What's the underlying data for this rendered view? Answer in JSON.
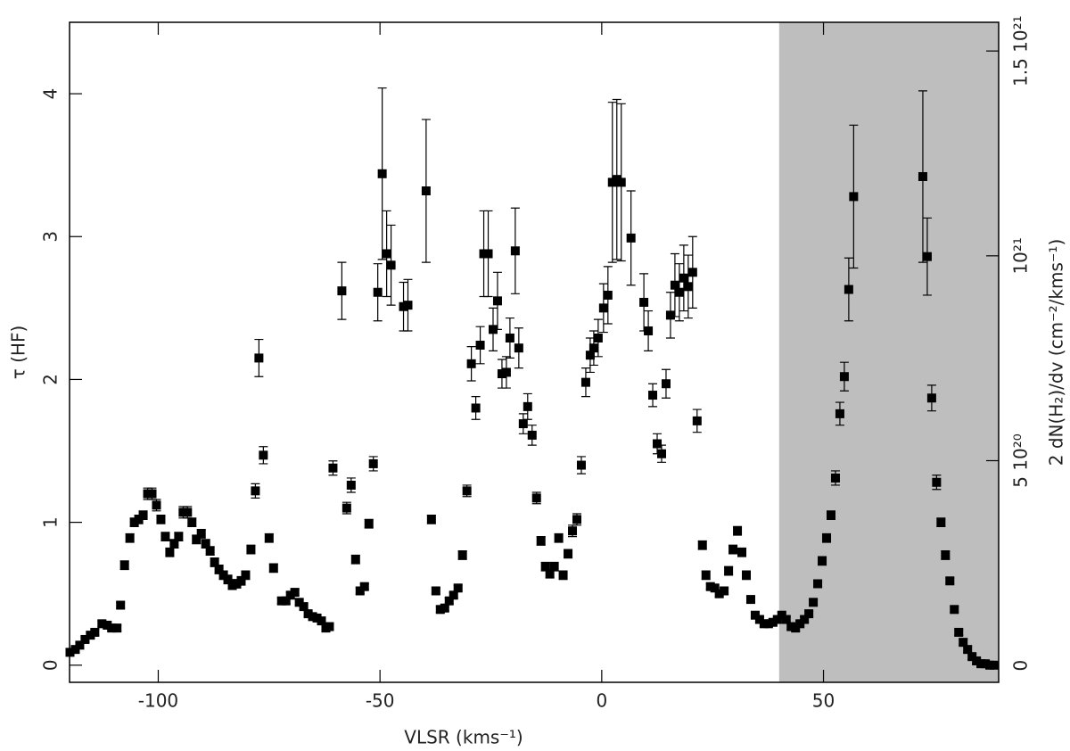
{
  "chart_data": {
    "type": "scatter",
    "xlabel": "VLSR (kms⁻¹)",
    "ylabel": "τ (HF)",
    "y2label": "2 dN(H₂)/dv (cm⁻²/kms⁻¹)",
    "xlim": [
      -120,
      89.5
    ],
    "ylim": [
      -0.12,
      4.5
    ],
    "y2lim": [
      -4.1e+19,
      1.57e+21
    ],
    "xticks": [
      -100,
      -50,
      0,
      50
    ],
    "yticks": [
      0,
      1,
      2,
      3,
      4
    ],
    "y2ticks": [
      0,
      {
        "value": 5e+20,
        "label": "5 10²⁰"
      },
      {
        "value": 1e+21,
        "label": "10²¹"
      },
      {
        "value": 1.5e+21,
        "label": "1.5 10²¹"
      }
    ],
    "shaded_xrange": [
      40,
      89.5
    ],
    "shade_color": "#bebebe",
    "color": "#000000",
    "x": [
      -119.9,
      -118.7,
      -117.7,
      -116.5,
      -115.3,
      -114.3,
      -112.7,
      -111.5,
      -110.5,
      -109.3,
      -108.5,
      -107.6,
      -106.4,
      -105.4,
      -104.4,
      -103.4,
      -102.4,
      -101.4,
      -100.4,
      -99.4,
      -98.4,
      -97.4,
      -96.4,
      -95.4,
      -94.4,
      -93.4,
      -92.4,
      -91.4,
      -90.3,
      -89.3,
      -88.3,
      -87.3,
      -86.3,
      -85.3,
      -84.3,
      -83.3,
      -82.3,
      -81.3,
      -80.3,
      -79.1,
      -78.1,
      -77.3,
      -76.3,
      -75.0,
      -74.0,
      -72.2,
      -71.2,
      -70.2,
      -69.2,
      -68.2,
      -67.2,
      -66.2,
      -65.2,
      -64.2,
      -63.2,
      -62.2,
      -61.4,
      -60.6,
      -58.6,
      -57.5,
      -56.5,
      -55.5,
      -54.5,
      -53.5,
      -52.5,
      -51.5,
      -50.5,
      -49.5,
      -48.5,
      -47.5,
      -44.7,
      -43.7,
      -39.6,
      -38.4,
      -37.4,
      -36.4,
      -35.4,
      -34.4,
      -33.4,
      -32.4,
      -31.4,
      -30.4,
      -29.4,
      -28.4,
      -27.4,
      -26.6,
      -25.6,
      -24.5,
      -23.5,
      -22.5,
      -21.5,
      -20.7,
      -19.5,
      -18.7,
      -17.7,
      -16.7,
      -15.7,
      -14.7,
      -13.7,
      -12.7,
      -11.7,
      -10.7,
      -9.7,
      -8.7,
      -7.6,
      -6.6,
      -5.6,
      -4.6,
      -3.6,
      -2.6,
      -1.8,
      -0.8,
      0.4,
      1.4,
      2.4,
      3.4,
      4.4,
      6.6,
      9.5,
      10.5,
      11.5,
      12.5,
      13.5,
      14.5,
      15.5,
      16.5,
      17.5,
      18.5,
      19.5,
      20.5,
      21.5,
      22.7,
      23.5,
      24.5,
      25.5,
      26.5,
      27.6,
      28.6,
      29.6,
      30.6,
      31.6,
      32.6,
      33.6,
      34.6,
      35.6,
      36.6,
      37.6,
      38.6,
      39.6,
      40.6,
      41.6,
      42.7,
      43.7,
      44.7,
      45.7,
      46.7,
      47.7,
      48.7,
      49.7,
      50.7,
      51.7,
      52.7,
      53.7,
      54.7,
      55.7,
      56.8,
      72.4,
      73.4,
      74.4,
      75.5,
      76.5,
      77.5,
      78.5,
      79.5,
      80.5,
      81.5,
      82.5,
      83.5,
      84.5,
      85.5,
      86.5,
      87.5,
      88.5
    ],
    "values": [
      0.09,
      0.11,
      0.14,
      0.18,
      0.21,
      0.23,
      0.29,
      0.28,
      0.26,
      0.26,
      0.42,
      0.7,
      0.89,
      1.0,
      1.02,
      1.05,
      1.2,
      1.2,
      1.12,
      1.02,
      0.9,
      0.79,
      0.85,
      0.9,
      1.07,
      1.07,
      1.0,
      0.88,
      0.92,
      0.85,
      0.8,
      0.72,
      0.67,
      0.63,
      0.6,
      0.56,
      0.57,
      0.59,
      0.63,
      0.81,
      1.22,
      2.15,
      1.47,
      0.89,
      0.68,
      0.45,
      0.45,
      0.49,
      0.51,
      0.44,
      0.41,
      0.36,
      0.34,
      0.33,
      0.31,
      0.26,
      0.27,
      1.38,
      2.62,
      1.1,
      1.26,
      0.74,
      0.52,
      0.55,
      0.99,
      1.41,
      2.61,
      3.44,
      2.88,
      2.8,
      2.51,
      2.52,
      3.32,
      1.02,
      0.52,
      0.39,
      0.4,
      0.45,
      0.49,
      0.54,
      0.77,
      1.22,
      2.11,
      1.8,
      2.24,
      2.88,
      2.88,
      2.35,
      2.55,
      2.04,
      2.05,
      2.29,
      2.9,
      2.22,
      1.69,
      1.81,
      1.61,
      1.17,
      0.87,
      0.69,
      0.64,
      0.69,
      0.89,
      0.63,
      0.78,
      0.94,
      1.02,
      1.4,
      1.98,
      2.17,
      2.22,
      2.29,
      2.5,
      2.59,
      3.38,
      3.4,
      3.38,
      2.99,
      2.54,
      2.34,
      1.89,
      1.55,
      1.48,
      1.97,
      2.45,
      2.66,
      2.61,
      2.71,
      2.65,
      2.75,
      1.71,
      0.84,
      0.63,
      0.55,
      0.54,
      0.5,
      0.52,
      0.66,
      0.81,
      0.94,
      0.79,
      0.63,
      0.46,
      0.35,
      0.32,
      0.29,
      0.29,
      0.3,
      0.32,
      0.35,
      0.32,
      0.27,
      0.26,
      0.29,
      0.32,
      0.36,
      0.44,
      0.57,
      0.73,
      0.89,
      1.05,
      1.31,
      1.76,
      2.02,
      2.63,
      3.28,
      3.42,
      2.86,
      1.87,
      1.28,
      1.0,
      0.77,
      0.59,
      0.39,
      0.23,
      0.16,
      0.11,
      0.06,
      0.03,
      0.01,
      0.01,
      0.0,
      0.0
    ],
    "errors": [
      0.02,
      0.02,
      0.02,
      0.02,
      0.02,
      0.02,
      0.02,
      0.02,
      0.02,
      0.02,
      0.02,
      0.03,
      0.03,
      0.03,
      0.03,
      0.03,
      0.04,
      0.04,
      0.04,
      0.03,
      0.03,
      0.03,
      0.03,
      0.03,
      0.04,
      0.04,
      0.03,
      0.03,
      0.03,
      0.03,
      0.03,
      0.03,
      0.03,
      0.03,
      0.03,
      0.03,
      0.03,
      0.03,
      0.03,
      0.03,
      0.05,
      0.13,
      0.06,
      0.03,
      0.03,
      0.02,
      0.02,
      0.02,
      0.02,
      0.02,
      0.02,
      0.02,
      0.02,
      0.02,
      0.02,
      0.02,
      0.02,
      0.05,
      0.2,
      0.04,
      0.05,
      0.03,
      0.02,
      0.02,
      0.03,
      0.05,
      0.2,
      0.6,
      0.3,
      0.28,
      0.17,
      0.18,
      0.5,
      0.03,
      0.02,
      0.02,
      0.02,
      0.02,
      0.02,
      0.02,
      0.03,
      0.04,
      0.12,
      0.08,
      0.13,
      0.3,
      0.3,
      0.15,
      0.2,
      0.1,
      0.11,
      0.14,
      0.3,
      0.14,
      0.07,
      0.09,
      0.07,
      0.04,
      0.03,
      0.03,
      0.03,
      0.03,
      0.03,
      0.03,
      0.03,
      0.04,
      0.04,
      0.06,
      0.1,
      0.12,
      0.12,
      0.13,
      0.17,
      0.2,
      0.56,
      0.56,
      0.55,
      0.33,
      0.2,
      0.14,
      0.08,
      0.07,
      0.06,
      0.1,
      0.16,
      0.22,
      0.2,
      0.23,
      0.22,
      0.25,
      0.08,
      0.03,
      0.03,
      0.02,
      0.02,
      0.02,
      0.02,
      0.03,
      0.03,
      0.03,
      0.03,
      0.03,
      0.02,
      0.02,
      0.02,
      0.02,
      0.02,
      0.02,
      0.02,
      0.02,
      0.02,
      0.02,
      0.02,
      0.02,
      0.02,
      0.02,
      0.02,
      0.02,
      0.03,
      0.03,
      0.03,
      0.05,
      0.08,
      0.1,
      0.22,
      0.5,
      0.6,
      0.27,
      0.09,
      0.05,
      0.03,
      0.03,
      0.02,
      0.02,
      0.02,
      0.02,
      0.02,
      0.02,
      0.02,
      0.02,
      0.02,
      0.02,
      0.02
    ]
  }
}
